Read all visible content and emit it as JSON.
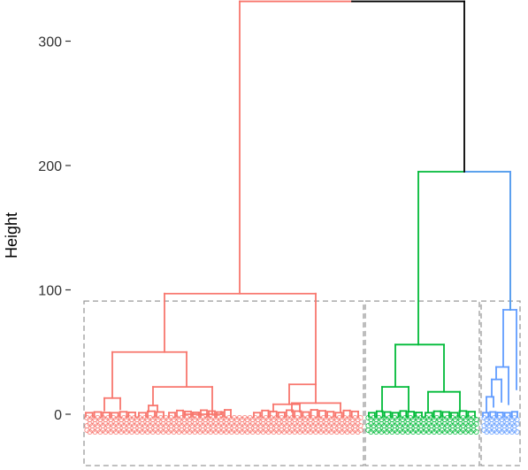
{
  "chart_data": {
    "type": "dendrogram",
    "title": "",
    "xlabel": "",
    "ylabel": "Height",
    "ylim": [
      -45,
      335
    ],
    "y_ticks": [
      0,
      100,
      200,
      300
    ],
    "grid": false,
    "legend": "none",
    "clusters": [
      {
        "color": "#F8766D",
        "leaf_count": 105,
        "box_top": 91
      },
      {
        "color": "#00BA38",
        "leaf_count": 42,
        "box_top": 91
      },
      {
        "color": "#619CFF",
        "leaf_count": 14,
        "box_top": 91
      }
    ],
    "merges": {
      "root": {
        "height": 332,
        "left": "red_top",
        "right": "green_blue",
        "color": "#000000"
      },
      "red_top": {
        "height": 97,
        "left": "red_left",
        "right": "red_right"
      },
      "red_left": {
        "height": 50,
        "left": "red_l1",
        "right": "red_l2"
      },
      "red_l1": {
        "height": 13
      },
      "red_l2": {
        "height": 22,
        "left": "red_l2a",
        "right": "red_l2b"
      },
      "red_l2a": {
        "height": 7
      },
      "red_l2b": {
        "height": 10
      },
      "red_right": {
        "height": 24,
        "left": "red_r1",
        "right": "red_r2"
      },
      "red_r1": {
        "height": 8
      },
      "red_r2": {
        "height": 9
      },
      "green_blue": {
        "height": 195,
        "left": "green_top",
        "right": "blue_top",
        "color": "#000000"
      },
      "green_top": {
        "height": 56,
        "left": "green_l",
        "right": "green_r"
      },
      "green_l": {
        "height": 22
      },
      "green_r": {
        "height": 18
      },
      "blue_top": {
        "height": 84,
        "left": "blue_l",
        "right": "blue_r"
      },
      "blue_l": {
        "height": 38
      },
      "blue_r": {
        "height": 27
      }
    }
  }
}
